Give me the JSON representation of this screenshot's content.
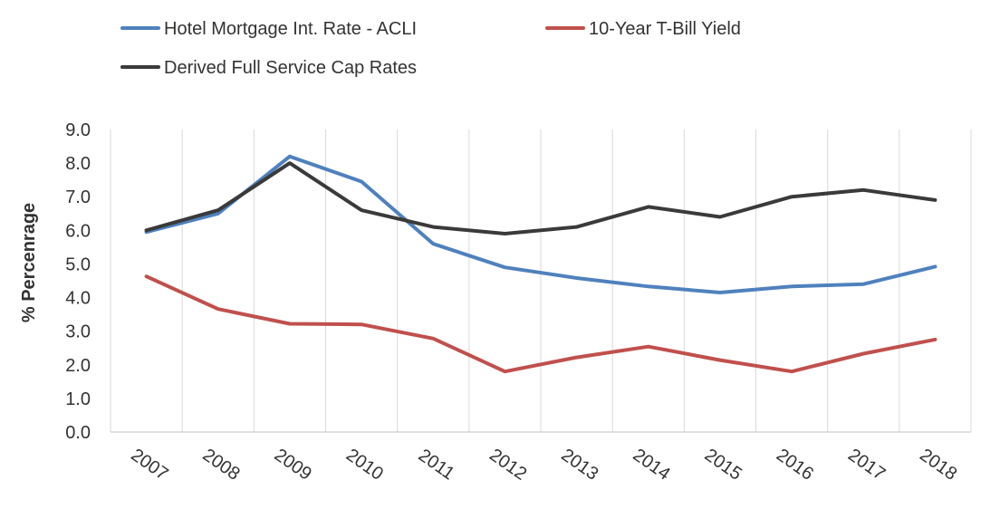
{
  "chart_data": {
    "type": "line",
    "title": "",
    "xlabel": "",
    "ylabel": "% Percenrage",
    "ylim": [
      0,
      9
    ],
    "yticks": [
      "0.0",
      "1.0",
      "2.0",
      "3.0",
      "4.0",
      "5.0",
      "6.0",
      "7.0",
      "8.0",
      "9.0"
    ],
    "categories": [
      "2007",
      "2008",
      "2009",
      "2010",
      "2011",
      "2012",
      "2013",
      "2014",
      "2015",
      "2016",
      "2017",
      "2018"
    ],
    "grid": "vertical",
    "legend_position": "top",
    "series": [
      {
        "name": "Hotel Mortgage Int. Rate - ACLI",
        "color": "#4f81bd",
        "values": [
          5.95,
          6.5,
          8.2,
          7.45,
          5.6,
          4.9,
          4.58,
          4.33,
          4.15,
          4.33,
          4.4,
          4.92
        ]
      },
      {
        "name": "10-Year T-Bill Yield",
        "color": "#c0504d",
        "values": [
          4.63,
          3.66,
          3.22,
          3.2,
          2.78,
          1.8,
          2.22,
          2.54,
          2.14,
          1.8,
          2.33,
          2.75
        ]
      },
      {
        "name": "Derived Full Service Cap Rates",
        "color": "#3a3a3a",
        "values": [
          6.0,
          6.6,
          8.0,
          6.6,
          6.1,
          5.9,
          6.1,
          6.7,
          6.4,
          7.0,
          7.2,
          6.9
        ]
      }
    ]
  }
}
